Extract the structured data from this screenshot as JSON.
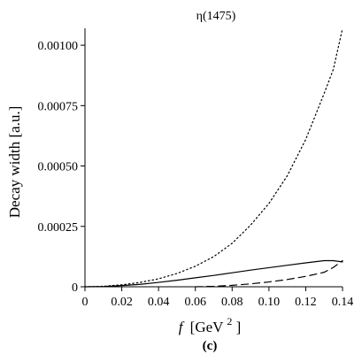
{
  "chart_data": {
    "type": "line",
    "title": "η(1475)",
    "xlabel": {
      "italic": "f",
      "rest": "[GeV",
      "exp": "2",
      "close": "]"
    },
    "ylabel": "Decay width [a.u.]",
    "caption": "(c)",
    "xlim": [
      0,
      0.14
    ],
    "ylim": [
      0,
      0.00107
    ],
    "x_ticks": [
      0,
      0.02,
      0.04,
      0.06,
      0.08,
      0.1,
      0.12,
      0.14
    ],
    "x_tick_labels": [
      "0",
      "0.02",
      "0.04",
      "0.06",
      "0.08",
      "0.10",
      "0.12",
      "0.14"
    ],
    "y_ticks": [
      0,
      0.00025,
      0.0005,
      0.00075,
      0.001
    ],
    "y_tick_labels": [
      "0",
      "0.00025",
      "0.00050",
      "0.00075",
      "0.00100"
    ],
    "grid": false,
    "legend": "none",
    "series": [
      {
        "style": "dotted",
        "x": [
          0,
          0.01,
          0.02,
          0.03,
          0.04,
          0.05,
          0.06,
          0.07,
          0.08,
          0.09,
          0.1,
          0.11,
          0.12,
          0.13,
          0.135,
          0.14
        ],
        "y": [
          0,
          2e-06,
          8e-06,
          1.8e-05,
          3.3e-05,
          5.5e-05,
          8.5e-05,
          0.000125,
          0.00018,
          0.000255,
          0.000345,
          0.00046,
          0.00061,
          0.0008,
          0.0009,
          0.00107
        ]
      },
      {
        "style": "solid",
        "x": [
          0,
          0.01,
          0.02,
          0.03,
          0.04,
          0.05,
          0.06,
          0.07,
          0.08,
          0.09,
          0.1,
          0.11,
          0.12,
          0.13,
          0.135,
          0.14
        ],
        "y": [
          0,
          1e-06,
          5e-06,
          1e-05,
          1.8e-05,
          2.7e-05,
          3.7e-05,
          4.7e-05,
          5.8e-05,
          6.9e-05,
          7.9e-05,
          8.9e-05,
          9.9e-05,
          0.000108,
          0.000108,
          0.000103
        ]
      },
      {
        "style": "dashed",
        "x": [
          0.06,
          0.07,
          0.08,
          0.09,
          0.1,
          0.11,
          0.12,
          0.13,
          0.135,
          0.14
        ],
        "y": [
          0,
          2e-06,
          6e-06,
          1.2e-05,
          2e-05,
          3e-05,
          4.3e-05,
          6e-05,
          8e-05,
          0.000108
        ]
      }
    ]
  }
}
